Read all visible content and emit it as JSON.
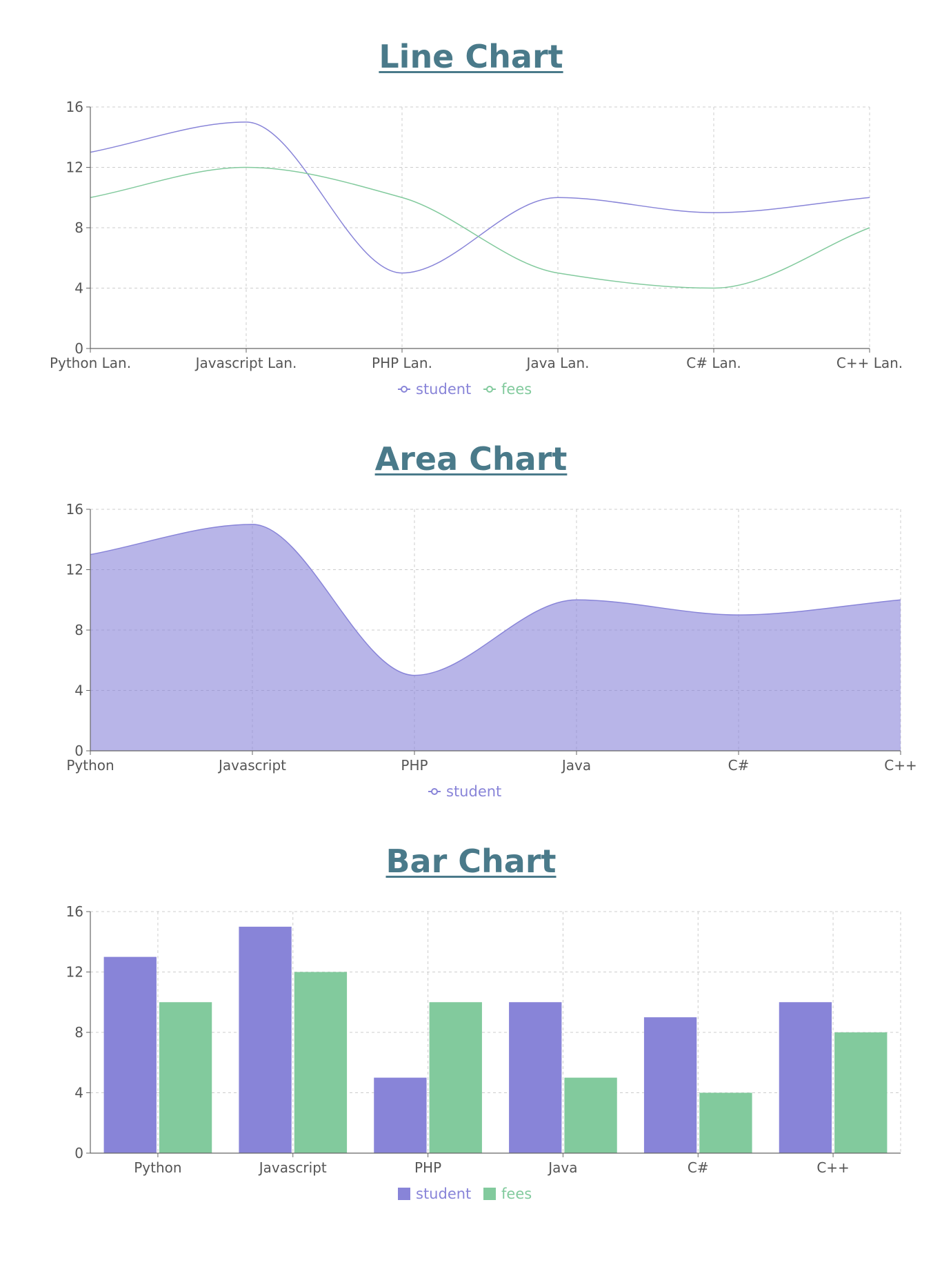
{
  "colors": {
    "student": "#8884d8",
    "fees": "#82ca9d",
    "title": "#4a7a8a"
  },
  "chart_data": [
    {
      "id": "line",
      "type": "line",
      "title": "Line Chart",
      "categories": [
        "Python Lan.",
        "Javascript Lan.",
        "PHP Lan.",
        "Java Lan.",
        "C# Lan.",
        "C++ Lan."
      ],
      "series": [
        {
          "name": "student",
          "values": [
            13,
            15,
            5,
            10,
            9,
            10
          ]
        },
        {
          "name": "fees",
          "values": [
            10,
            12,
            10,
            5,
            4,
            8
          ]
        }
      ],
      "ylim": [
        0,
        16
      ],
      "yticks": [
        0,
        4,
        8,
        12,
        16
      ],
      "grid": true,
      "legend": "bottom-center"
    },
    {
      "id": "area",
      "type": "area",
      "title": "Area Chart",
      "categories": [
        "Python",
        "Javascript",
        "PHP",
        "Java",
        "C#",
        "C++"
      ],
      "series": [
        {
          "name": "student",
          "values": [
            13,
            15,
            5,
            10,
            9,
            10
          ]
        }
      ],
      "ylim": [
        0,
        16
      ],
      "yticks": [
        0,
        4,
        8,
        12,
        16
      ],
      "grid": true,
      "legend": "bottom-center"
    },
    {
      "id": "bar",
      "type": "bar",
      "title": "Bar Chart",
      "categories": [
        "Python",
        "Javascript",
        "PHP",
        "Java",
        "C#",
        "C++"
      ],
      "series": [
        {
          "name": "student",
          "values": [
            13,
            15,
            5,
            10,
            9,
            10
          ]
        },
        {
          "name": "fees",
          "values": [
            10,
            12,
            10,
            5,
            4,
            8
          ]
        }
      ],
      "ylim": [
        0,
        16
      ],
      "yticks": [
        0,
        4,
        8,
        12,
        16
      ],
      "grid": true,
      "legend": "bottom-center"
    }
  ]
}
